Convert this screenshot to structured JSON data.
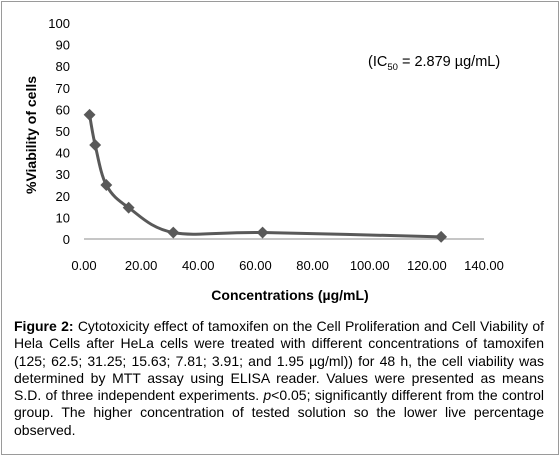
{
  "chart_data": {
    "type": "line",
    "x": [
      1.95,
      3.91,
      7.81,
      15.63,
      31.25,
      62.5,
      125
    ],
    "series": [
      {
        "values": [
          57.5,
          43.5,
          25,
          14.5,
          3,
          3,
          1
        ],
        "color": "#595959"
      }
    ],
    "ylabel": "%Viability of cells",
    "xlabel": "Concentrations (µg/mL)",
    "xlim": [
      0,
      140
    ],
    "ylim": [
      0,
      100
    ],
    "x_ticks": [
      "0.00",
      "20.00",
      "40.00",
      "60.00",
      "80.00",
      "100.00",
      "120.00",
      "140.00"
    ],
    "y_ticks": [
      "0",
      "10",
      "20",
      "30",
      "40",
      "50",
      "60",
      "70",
      "80",
      "90",
      "100"
    ],
    "annotation": {
      "prefix": "(IC",
      "sub": "50",
      "suffix": " = 2.879 µg/mL)"
    },
    "grid": false,
    "smooth": true
  },
  "caption": {
    "label": "Figure 2:",
    "text1": " Cytotoxicity effect of tamoxifen on the Cell Proliferation and Cell Viability of Hela Cells after HeLa cells were treated with different concentrations of tamoxifen (125; 62.5; 31.25; 15.63; 7.81; 3.91; and 1.95 µg/ml)) for 48 h, the cell viability was determined by MTT assay using ELISA reader. Values were presented as means S.D. of three independent experiments. ",
    "p_italic": "p",
    "text2": "<0.05; significantly different from the control group. The higher concentration of tested solution so the lower live percentage observed."
  }
}
